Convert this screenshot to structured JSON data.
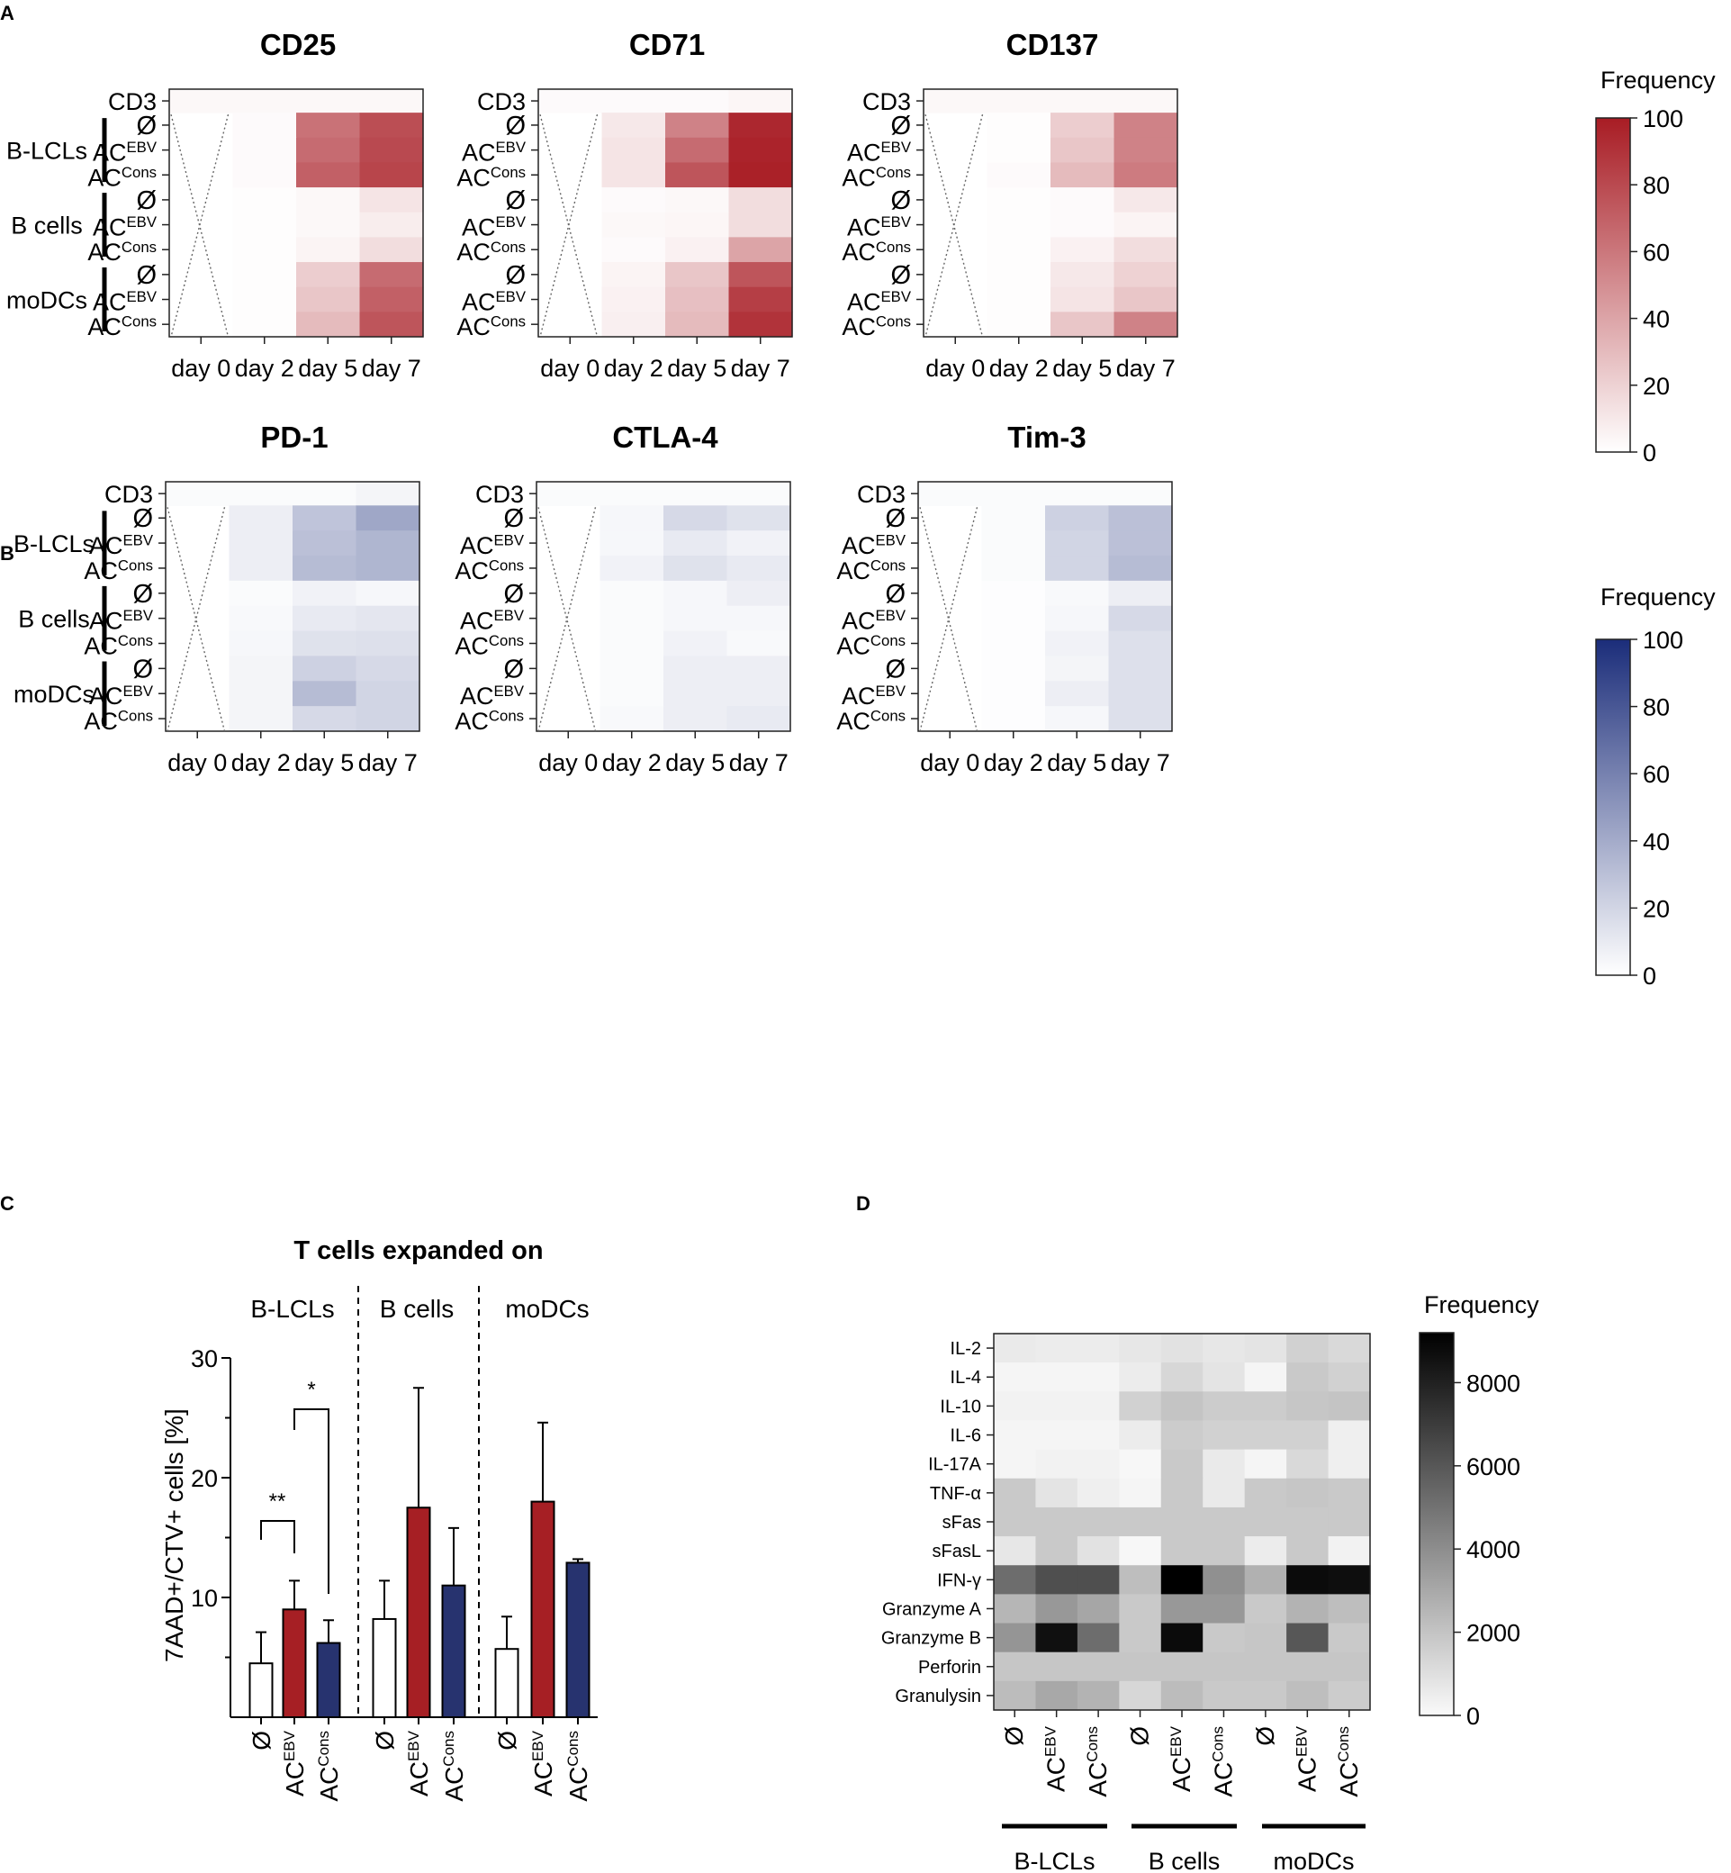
{
  "row_labels": [
    "CD3",
    "Ø",
    "AC^EBV",
    "AC^Cons",
    "Ø",
    "AC^EBV",
    "AC^Cons",
    "Ø",
    "AC^EBV",
    "AC^Cons"
  ],
  "group_labels": [
    "B-LCLs",
    "B cells",
    "moDCs"
  ],
  "day_labels": [
    "day 0",
    "day 2",
    "day 5",
    "day 7"
  ],
  "colors": {
    "red": "#a81c24",
    "blue": "#1b2d7a",
    "bar_red": "#a61f24",
    "bar_blue": "#27336f"
  },
  "chart_data": [
    {
      "panel": "A",
      "type": "heatmap",
      "title": "CD25",
      "rows": [
        "CD3",
        "Ø (B-LCLs)",
        "AC^EBV (B-LCLs)",
        "AC^Cons (B-LCLs)",
        "Ø (B cells)",
        "AC^EBV (B cells)",
        "AC^Cons (B cells)",
        "Ø (moDCs)",
        "AC^EBV (moDCs)",
        "AC^Cons (moDCs)"
      ],
      "columns": [
        "day 0",
        "day 2",
        "day 5",
        "day 7"
      ],
      "values": [
        [
          3,
          3,
          3,
          3
        ],
        [
          null,
          2,
          62,
          78
        ],
        [
          null,
          2,
          65,
          80
        ],
        [
          null,
          2,
          70,
          82
        ],
        [
          null,
          1,
          3,
          12
        ],
        [
          null,
          1,
          3,
          8
        ],
        [
          null,
          1,
          5,
          15
        ],
        [
          null,
          1,
          22,
          65
        ],
        [
          null,
          1,
          25,
          70
        ],
        [
          null,
          1,
          30,
          75
        ]
      ],
      "colorbar": {
        "label": "Frequency",
        "min": 0,
        "max": 100,
        "ticks": [
          0,
          20,
          40,
          60,
          80,
          100
        ]
      }
    },
    {
      "panel": "A",
      "type": "heatmap",
      "title": "CD71",
      "rows": [
        "CD3",
        "Ø (B-LCLs)",
        "AC^EBV (B-LCLs)",
        "AC^Cons (B-LCLs)",
        "Ø (B cells)",
        "AC^EBV (B cells)",
        "AC^Cons (B cells)",
        "Ø (moDCs)",
        "AC^EBV (moDCs)",
        "AC^Cons (moDCs)"
      ],
      "columns": [
        "day 0",
        "day 2",
        "day 5",
        "day 7"
      ],
      "values": [
        [
          2,
          2,
          2,
          4
        ],
        [
          null,
          10,
          55,
          95
        ],
        [
          null,
          12,
          65,
          97
        ],
        [
          null,
          12,
          75,
          98
        ],
        [
          null,
          2,
          3,
          15
        ],
        [
          null,
          3,
          4,
          15
        ],
        [
          null,
          2,
          6,
          40
        ],
        [
          null,
          5,
          25,
          75
        ],
        [
          null,
          6,
          28,
          85
        ],
        [
          null,
          7,
          30,
          90
        ]
      ],
      "colorbar": {
        "label": "Frequency",
        "min": 0,
        "max": 100,
        "ticks": [
          0,
          20,
          40,
          60,
          80,
          100
        ]
      }
    },
    {
      "panel": "A",
      "type": "heatmap",
      "title": "CD137",
      "rows": [
        "CD3",
        "Ø (B-LCLs)",
        "AC^EBV (B-LCLs)",
        "AC^Cons (B-LCLs)",
        "Ø (B cells)",
        "AC^EBV (B cells)",
        "AC^Cons (B cells)",
        "Ø (moDCs)",
        "AC^EBV (moDCs)",
        "AC^Cons (moDCs)"
      ],
      "columns": [
        "day 0",
        "day 2",
        "day 5",
        "day 7"
      ],
      "values": [
        [
          3,
          3,
          3,
          3
        ],
        [
          null,
          1,
          22,
          55
        ],
        [
          null,
          1,
          25,
          55
        ],
        [
          null,
          2,
          30,
          58
        ],
        [
          null,
          1,
          2,
          10
        ],
        [
          null,
          1,
          2,
          5
        ],
        [
          null,
          1,
          6,
          15
        ],
        [
          null,
          1,
          10,
          20
        ],
        [
          null,
          1,
          12,
          25
        ],
        [
          null,
          1,
          25,
          55
        ]
      ],
      "colorbar": {
        "label": "Frequency",
        "min": 0,
        "max": 100,
        "ticks": [
          0,
          20,
          40,
          60,
          80,
          100
        ]
      }
    },
    {
      "panel": "B",
      "type": "heatmap",
      "title": "PD-1",
      "rows": [
        "CD3",
        "Ø (B-LCLs)",
        "AC^EBV (B-LCLs)",
        "AC^Cons (B-LCLs)",
        "Ø (B cells)",
        "AC^EBV (B cells)",
        "AC^Cons (B cells)",
        "Ø (moDCs)",
        "AC^EBV (moDCs)",
        "AC^Cons (moDCs)"
      ],
      "columns": [
        "day 0",
        "day 2",
        "day 5",
        "day 7"
      ],
      "values": [
        [
          2,
          2,
          2,
          5
        ],
        [
          null,
          8,
          28,
          42
        ],
        [
          null,
          8,
          30,
          35
        ],
        [
          null,
          8,
          32,
          35
        ],
        [
          null,
          2,
          6,
          4
        ],
        [
          null,
          3,
          10,
          12
        ],
        [
          null,
          4,
          14,
          15
        ],
        [
          null,
          5,
          22,
          18
        ],
        [
          null,
          5,
          32,
          20
        ],
        [
          null,
          5,
          18,
          20
        ]
      ],
      "colorbar": {
        "label": "Frequency",
        "min": 0,
        "max": 100,
        "ticks": [
          0,
          20,
          40,
          60,
          80,
          100
        ]
      }
    },
    {
      "panel": "B",
      "type": "heatmap",
      "title": "CTLA-4",
      "rows": [
        "CD3",
        "Ø (B-LCLs)",
        "AC^EBV (B-LCLs)",
        "AC^Cons (B-LCLs)",
        "Ø (B cells)",
        "AC^EBV (B cells)",
        "AC^Cons (B cells)",
        "Ø (moDCs)",
        "AC^EBV (moDCs)",
        "AC^Cons (moDCs)"
      ],
      "columns": [
        "day 0",
        "day 2",
        "day 5",
        "day 7"
      ],
      "values": [
        [
          2,
          2,
          2,
          2
        ],
        [
          null,
          4,
          18,
          14
        ],
        [
          null,
          4,
          10,
          6
        ],
        [
          null,
          6,
          14,
          10
        ],
        [
          null,
          2,
          4,
          8
        ],
        [
          null,
          2,
          4,
          4
        ],
        [
          null,
          2,
          6,
          3
        ],
        [
          null,
          2,
          8,
          8
        ],
        [
          null,
          2,
          8,
          8
        ],
        [
          null,
          3,
          8,
          10
        ]
      ],
      "colorbar": {
        "label": "Frequency",
        "min": 0,
        "max": 100,
        "ticks": [
          0,
          20,
          40,
          60,
          80,
          100
        ]
      }
    },
    {
      "panel": "B",
      "type": "heatmap",
      "title": "Tim-3",
      "rows": [
        "CD3",
        "Ø (B-LCLs)",
        "AC^EBV (B-LCLs)",
        "AC^Cons (B-LCLs)",
        "Ø (B cells)",
        "AC^EBV (B cells)",
        "AC^Cons (B cells)",
        "Ø (moDCs)",
        "AC^EBV (moDCs)",
        "AC^Cons (moDCs)"
      ],
      "columns": [
        "day 0",
        "day 2",
        "day 5",
        "day 7"
      ],
      "values": [
        [
          2,
          2,
          2,
          2
        ],
        [
          null,
          2,
          22,
          30
        ],
        [
          null,
          2,
          20,
          30
        ],
        [
          null,
          2,
          20,
          32
        ],
        [
          null,
          1,
          3,
          8
        ],
        [
          null,
          1,
          4,
          18
        ],
        [
          null,
          1,
          6,
          15
        ],
        [
          null,
          1,
          5,
          15
        ],
        [
          null,
          1,
          8,
          15
        ],
        [
          null,
          1,
          4,
          15
        ]
      ],
      "colorbar": {
        "label": "Frequency",
        "min": 0,
        "max": 100,
        "ticks": [
          0,
          20,
          40,
          60,
          80,
          100
        ]
      }
    },
    {
      "panel": "C",
      "type": "bar",
      "title": "T cells expanded on",
      "groups": [
        "B-LCLs",
        "B cells",
        "moDCs"
      ],
      "categories": [
        "Ø",
        "AC^EBV",
        "AC^Cons"
      ],
      "series": [
        {
          "group": "B-LCLs",
          "values": [
            4.5,
            9.0,
            6.2
          ],
          "errors": [
            2.6,
            2.4,
            1.9
          ]
        },
        {
          "group": "B cells",
          "values": [
            8.2,
            17.5,
            11.0
          ],
          "errors": [
            3.2,
            10.0,
            4.8
          ]
        },
        {
          "group": "moDCs",
          "values": [
            5.7,
            18.0,
            12.9
          ],
          "errors": [
            2.7,
            6.6,
            0.3
          ]
        }
      ],
      "ylabel": "7AAD+/CTV+ cells [%]",
      "yticks": [
        10,
        20,
        30
      ],
      "ylim": [
        0,
        30
      ],
      "significance": [
        {
          "from": "Ø",
          "to": "AC^EBV",
          "group": "B-LCLs",
          "label": "**"
        },
        {
          "from": "AC^EBV",
          "to": "AC^Cons",
          "group": "B-LCLs",
          "label": "*"
        }
      ]
    },
    {
      "panel": "D",
      "type": "heatmap",
      "title": "",
      "rows": [
        "IL-2",
        "IL-4",
        "IL-10",
        "IL-6",
        "IL-17A",
        "TNF-α",
        "sFas",
        "sFasL",
        "IFN-γ",
        "Granzyme A",
        "Granzyme B",
        "Perforin",
        "Granulysin"
      ],
      "columns": [
        "Ø (B-LCLs)",
        "AC^EBV (B-LCLs)",
        "AC^Cons (B-LCLs)",
        "Ø (B cells)",
        "AC^EBV (B cells)",
        "AC^Cons (B cells)",
        "Ø (moDCs)",
        "AC^EBV (moDCs)",
        "AC^Cons (moDCs)"
      ],
      "values": [
        [
          600,
          500,
          500,
          700,
          900,
          700,
          800,
          1500,
          1200
        ],
        [
          200,
          200,
          200,
          500,
          1300,
          800,
          200,
          1800,
          1500
        ],
        [
          300,
          300,
          300,
          1500,
          2000,
          1700,
          1700,
          1900,
          2000
        ],
        [
          200,
          200,
          200,
          500,
          1700,
          1500,
          1500,
          1500,
          400
        ],
        [
          200,
          300,
          300,
          100,
          1800,
          600,
          200,
          1200,
          400
        ],
        [
          1800,
          800,
          400,
          200,
          1800,
          600,
          1800,
          1900,
          1800
        ],
        [
          1800,
          1800,
          1800,
          1800,
          1800,
          1800,
          1800,
          1800,
          1800
        ],
        [
          700,
          1800,
          900,
          100,
          1800,
          1800,
          500,
          1800,
          300
        ],
        [
          5200,
          6300,
          6300,
          2200,
          9200,
          3900,
          2700,
          8800,
          8700
        ],
        [
          2500,
          3600,
          3100,
          1800,
          3600,
          3600,
          1800,
          2600,
          2200
        ],
        [
          3700,
          8600,
          5200,
          1800,
          8800,
          1800,
          1900,
          6000,
          1800
        ],
        [
          1900,
          1900,
          1900,
          1900,
          1900,
          1900,
          1900,
          1900,
          1900
        ],
        [
          2300,
          3000,
          2600,
          1300,
          2300,
          1800,
          1800,
          2200,
          1700
        ]
      ],
      "colorbar": {
        "label": "Frequency",
        "min": 0,
        "max": 9200,
        "ticks": [
          0,
          2000,
          4000,
          6000,
          8000
        ]
      }
    }
  ],
  "text": {
    "panel_A": "A",
    "panel_B": "B",
    "panel_C": "C",
    "panel_D": "D",
    "title_cd25": "CD25",
    "title_cd71": "CD71",
    "title_cd137": "CD137",
    "title_pd1": "PD-1",
    "title_ctla4": "CTLA-4",
    "title_tim3": "Tim-3",
    "title_c": "T cells expanded on",
    "ylabel_c": "7AAD+/CTV+ cells [%]",
    "frequency": "Frequency",
    "cb_ticks_100": [
      "0",
      "20",
      "40",
      "60",
      "80",
      "100"
    ],
    "cb_ticks_d": [
      "0",
      "2000",
      "4000",
      "6000",
      "8000"
    ],
    "yticks_c": [
      "10",
      "20",
      "30"
    ],
    "sig_double": "**",
    "sig_single": "*",
    "ac": "AC",
    "ebv": "EBV",
    "cons": "Cons",
    "empty": "Ø"
  }
}
